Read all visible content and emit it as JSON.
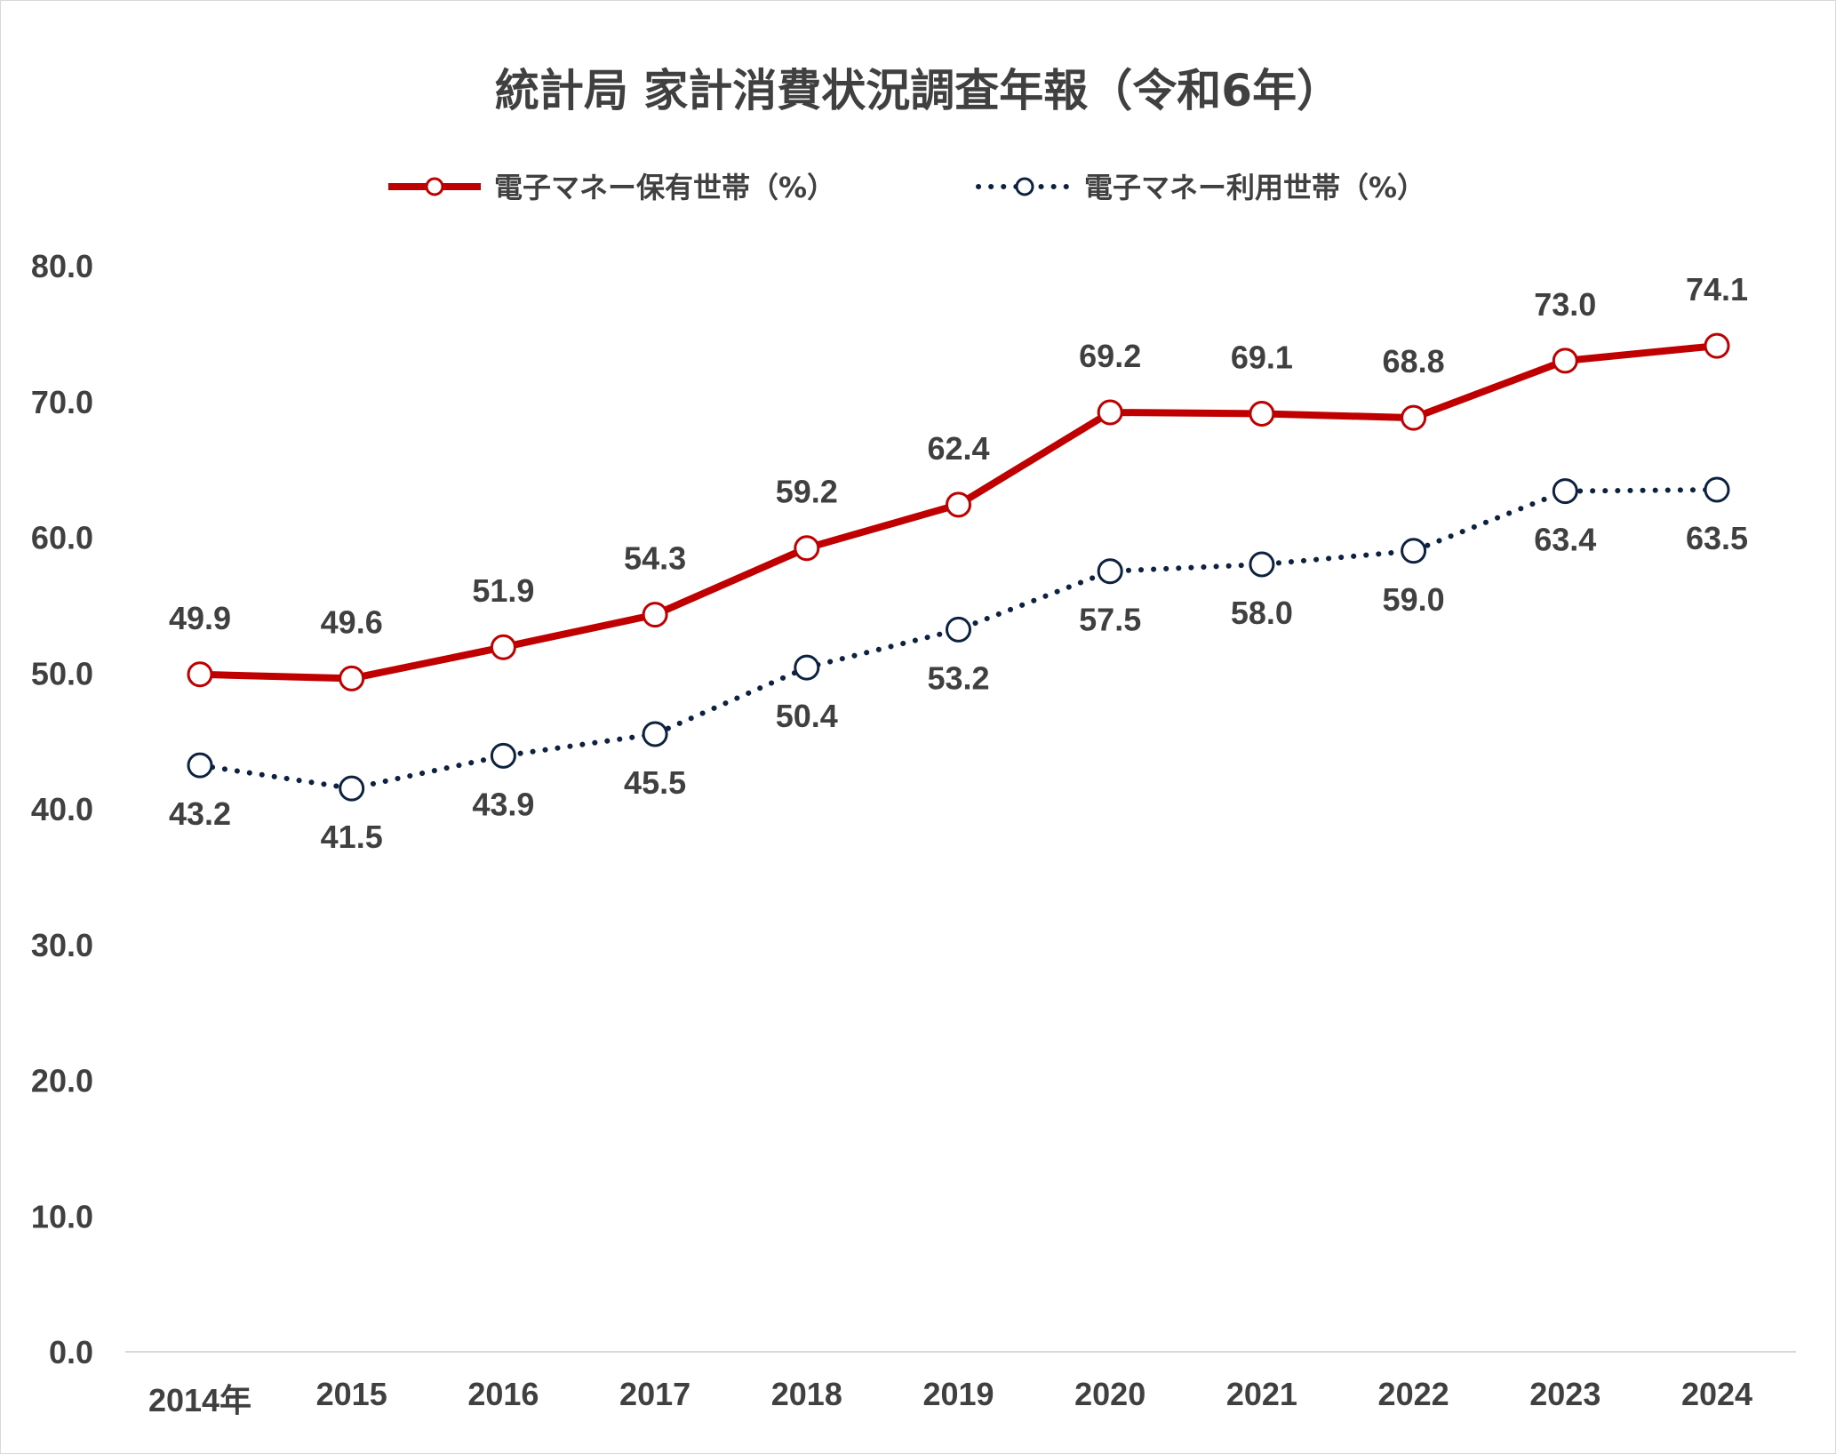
{
  "chart_data": {
    "type": "line",
    "title": "統計局 家計消費状況調査年報（令和6年）",
    "categories": [
      "2014年",
      "2015",
      "2016",
      "2017",
      "2018",
      "2019",
      "2020",
      "2021",
      "2022",
      "2023",
      "2024"
    ],
    "ylim": [
      0,
      80
    ],
    "yticks": [
      "0.0",
      "10.0",
      "20.0",
      "30.0",
      "40.0",
      "50.0",
      "60.0",
      "70.0",
      "80.0"
    ],
    "grid": false,
    "legend_position": "top",
    "series": [
      {
        "name": "電子マネー保有世帯（%）",
        "values": [
          49.9,
          49.6,
          51.9,
          54.3,
          59.2,
          62.4,
          69.2,
          69.1,
          68.8,
          73.0,
          74.1
        ],
        "labels": [
          "49.9",
          "49.6",
          "51.9",
          "54.3",
          "59.2",
          "62.4",
          "69.2",
          "69.1",
          "68.8",
          "73.0",
          "74.1"
        ],
        "color": "#c00000",
        "line_style": "solid",
        "label_side": "above"
      },
      {
        "name": "電子マネー利用世帯（%）",
        "values": [
          43.2,
          41.5,
          43.9,
          45.5,
          50.4,
          53.2,
          57.5,
          58.0,
          59.0,
          63.4,
          63.5
        ],
        "labels": [
          "43.2",
          "41.5",
          "43.9",
          "45.5",
          "50.4",
          "53.2",
          "57.5",
          "58.0",
          "59.0",
          "63.4",
          "63.5"
        ],
        "color": "#0d2240",
        "line_style": "dotted",
        "label_side": "below"
      }
    ]
  }
}
